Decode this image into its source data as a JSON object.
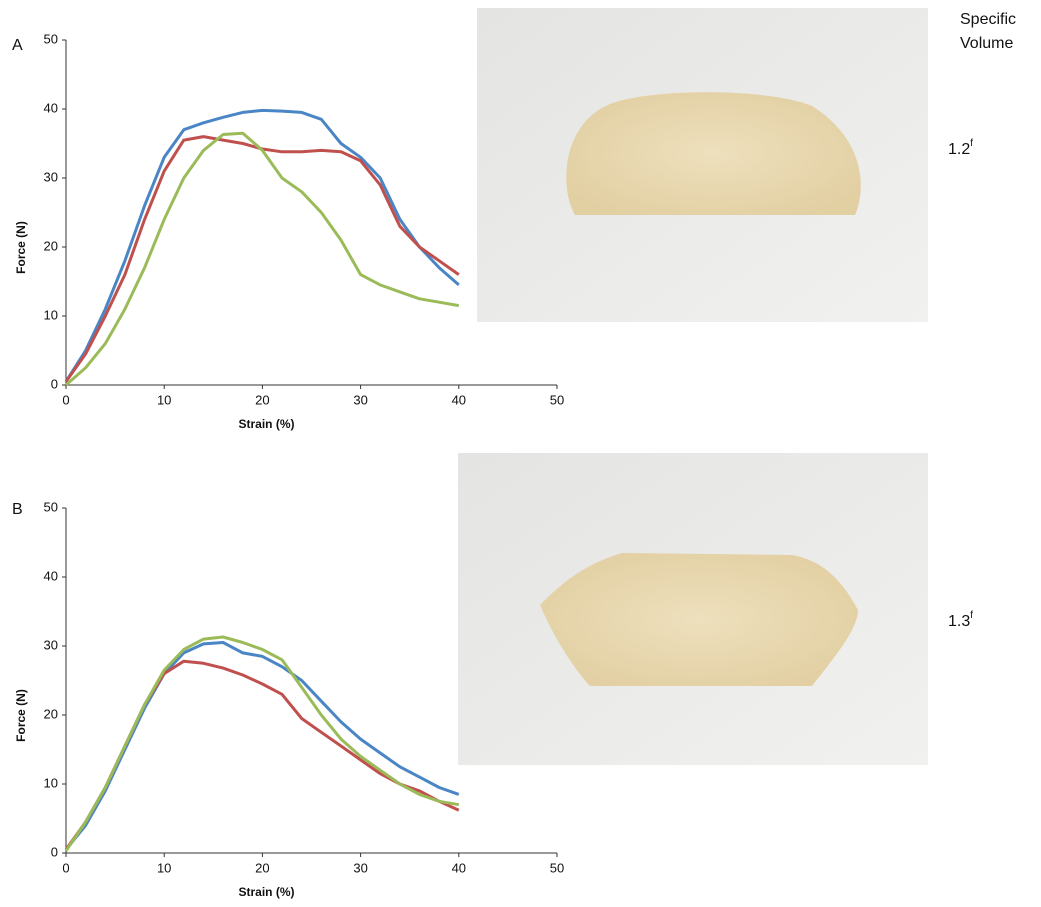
{
  "column_header_line1": "Specific",
  "column_header_line2": "Volume",
  "chart_data": [
    {
      "type": "line",
      "panel_label": "A",
      "specific_volume": "1.2",
      "specific_volume_mark": "f",
      "xlabel": "Strain (%)",
      "ylabel": "Force (N)",
      "x": [
        0,
        2,
        4,
        6,
        8,
        10,
        12,
        14,
        16,
        18,
        20,
        22,
        24,
        26,
        28,
        30,
        32,
        34,
        36,
        38,
        40
      ],
      "series": [
        {
          "color": "#4a86c5",
          "values": [
            0.5,
            5,
            11,
            18,
            26,
            33,
            37,
            38,
            38.8,
            39.5,
            39.8,
            39.7,
            39.5,
            38.5,
            35,
            33,
            30,
            24,
            20,
            17,
            14.5
          ]
        },
        {
          "color": "#c0504d",
          "values": [
            0.5,
            4.5,
            10,
            16,
            24,
            31,
            35.5,
            36,
            35.5,
            35,
            34.2,
            33.8,
            33.8,
            34,
            33.8,
            32.5,
            29,
            23,
            20,
            18,
            16
          ]
        },
        {
          "color": "#9bbb59",
          "values": [
            0,
            2.5,
            6,
            11,
            17,
            24,
            30,
            34,
            36.3,
            36.5,
            34,
            30,
            28,
            25,
            21,
            16,
            14.5,
            13.5,
            12.5,
            12,
            11.5
          ]
        }
      ],
      "xlim": [
        0,
        50
      ],
      "xticks": [
        0,
        10,
        20,
        30,
        40,
        50
      ],
      "ylim": [
        0,
        50
      ],
      "yticks": [
        0,
        10,
        20,
        30,
        40,
        50
      ],
      "grid": false
    },
    {
      "type": "line",
      "panel_label": "B",
      "specific_volume": "1.3",
      "specific_volume_mark": "f",
      "xlabel": "Strain (%)",
      "ylabel": "Force (N)",
      "x": [
        0,
        2,
        4,
        6,
        8,
        10,
        12,
        14,
        16,
        18,
        20,
        22,
        24,
        26,
        28,
        30,
        32,
        34,
        36,
        38,
        40
      ],
      "series": [
        {
          "color": "#4a86c5",
          "values": [
            0.5,
            4,
            9,
            15,
            21,
            26,
            29,
            30.3,
            30.5,
            29,
            28.5,
            27,
            25,
            22,
            19,
            16.5,
            14.5,
            12.5,
            11,
            9.5,
            8.5
          ]
        },
        {
          "color": "#c0504d",
          "values": [
            0.5,
            4.5,
            9.5,
            15.5,
            21.5,
            26,
            27.8,
            27.5,
            26.8,
            25.8,
            24.5,
            23,
            19.5,
            17.5,
            15.5,
            13.5,
            11.5,
            10,
            9,
            7.5,
            6.2
          ]
        },
        {
          "color": "#9bbb59",
          "values": [
            0.3,
            4.5,
            9.5,
            15.5,
            21.5,
            26.5,
            29.5,
            31,
            31.3,
            30.5,
            29.5,
            28,
            24,
            20,
            16.5,
            14,
            12,
            10,
            8.5,
            7.5,
            7
          ]
        }
      ],
      "xlim": [
        0,
        50
      ],
      "xticks": [
        0,
        10,
        20,
        30,
        40,
        50
      ],
      "ylim": [
        0,
        50
      ],
      "yticks": [
        0,
        10,
        20,
        30,
        40,
        50
      ],
      "grid": false
    }
  ]
}
